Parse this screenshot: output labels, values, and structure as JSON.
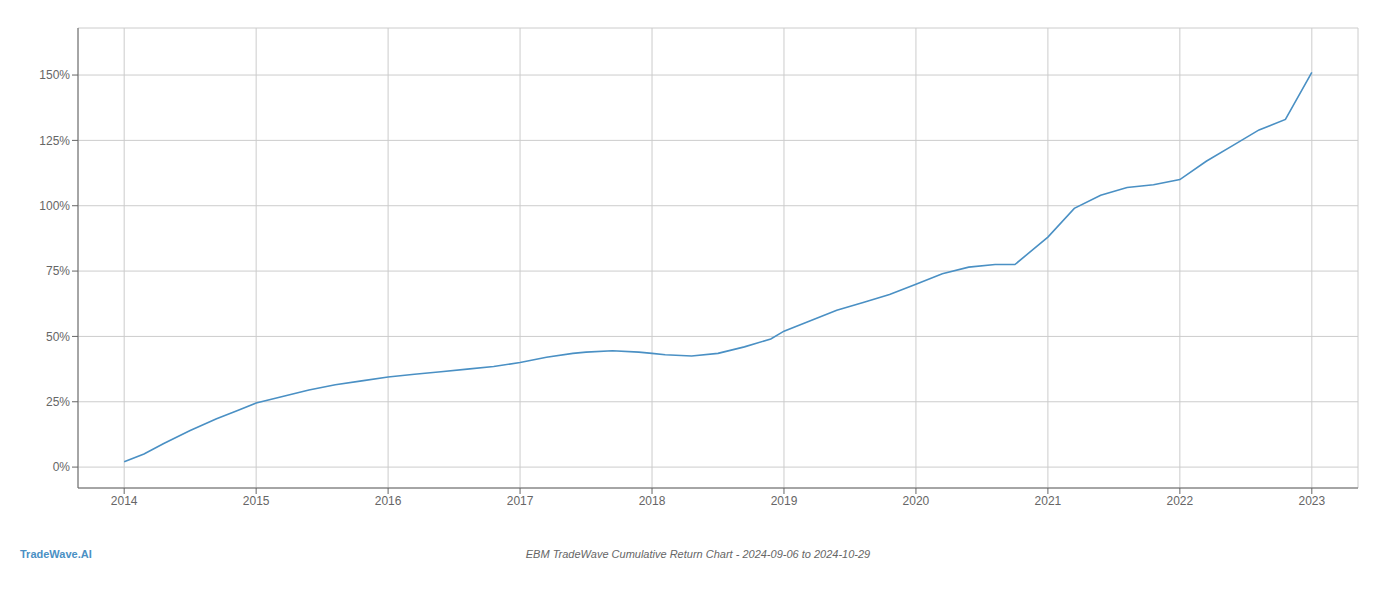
{
  "chart_data": {
    "type": "line",
    "title": "EBM TradeWave Cumulative Return Chart - 2024-09-06 to 2024-10-29",
    "annotations": [
      "TradeWave.AI"
    ],
    "color": "#4a90c4",
    "grid": true,
    "x": [
      2014.0,
      2014.15,
      2014.3,
      2014.5,
      2014.7,
      2014.85,
      2015.0,
      2015.2,
      2015.4,
      2015.6,
      2015.8,
      2016.0,
      2016.2,
      2016.4,
      2016.6,
      2016.8,
      2017.0,
      2017.2,
      2017.4,
      2017.5,
      2017.7,
      2017.9,
      2018.0,
      2018.1,
      2018.3,
      2018.5,
      2018.7,
      2018.9,
      2019.0,
      2019.2,
      2019.4,
      2019.6,
      2019.8,
      2020.0,
      2020.2,
      2020.4,
      2020.6,
      2020.75,
      2021.0,
      2021.2,
      2021.4,
      2021.6,
      2021.8,
      2022.0,
      2022.2,
      2022.4,
      2022.6,
      2022.8,
      2023.0
    ],
    "values": [
      2.0,
      5.0,
      9.0,
      14.0,
      18.5,
      21.5,
      24.5,
      27.0,
      29.5,
      31.5,
      33.0,
      34.5,
      35.5,
      36.5,
      37.5,
      38.5,
      40.0,
      42.0,
      43.5,
      44.0,
      44.5,
      44.0,
      43.5,
      43.0,
      42.5,
      43.5,
      46.0,
      49.0,
      52.0,
      56.0,
      60.0,
      63.0,
      66.0,
      70.0,
      74.0,
      76.5,
      77.5,
      77.5,
      88.0,
      99.0,
      104.0,
      107.0,
      108.0,
      110.0,
      117.0,
      123.0,
      129.0,
      133.0,
      151.0
    ],
    "xlim": [
      2013.65,
      2023.35
    ],
    "ylim": [
      -8,
      168
    ],
    "xticks": [
      2014,
      2015,
      2016,
      2017,
      2018,
      2019,
      2020,
      2021,
      2022,
      2023
    ],
    "yticks": [
      {
        "value": 0,
        "label": "0%"
      },
      {
        "value": 25,
        "label": "25%"
      },
      {
        "value": 50,
        "label": "50%"
      },
      {
        "value": 75,
        "label": "75%"
      },
      {
        "value": 100,
        "label": "100%"
      },
      {
        "value": 125,
        "label": "125%"
      },
      {
        "value": 150,
        "label": "150%"
      }
    ]
  }
}
